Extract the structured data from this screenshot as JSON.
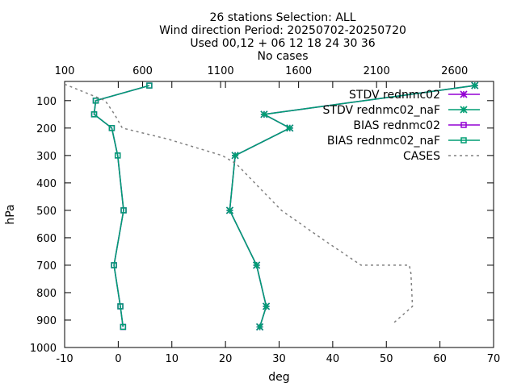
{
  "chart_data": {
    "type": "line",
    "title": [
      "26 stations Selection: ALL",
      "Wind direction  Period: 20250702-20250720",
      "Used 00,12 + 06 12 18 24 30 36",
      "No cases"
    ],
    "xlabel": "deg",
    "ylabel": "hPa",
    "x2label": "",
    "xlim": [
      -10,
      70
    ],
    "ylim": [
      1000,
      30
    ],
    "x2lim": [
      100,
      2850
    ],
    "x_ticks": [
      -10,
      0,
      10,
      20,
      30,
      40,
      50,
      60,
      70
    ],
    "y_ticks": [
      100,
      200,
      300,
      400,
      500,
      600,
      700,
      800,
      900,
      1000
    ],
    "x2_ticks": [
      100,
      600,
      1100,
      1600,
      2100,
      2600
    ],
    "legend_position": "top-right",
    "series": [
      {
        "name": "STDV rednmc02",
        "color": "#9400d3",
        "marker": "star",
        "axis": "x1",
        "points": [
          [
            66.5,
            45
          ],
          [
            27.2,
            150
          ],
          [
            32.0,
            200
          ],
          [
            21.8,
            300
          ],
          [
            20.8,
            500
          ],
          [
            25.8,
            700
          ],
          [
            27.6,
            850
          ],
          [
            26.4,
            925
          ]
        ]
      },
      {
        "name": "STDV rednmc02_naF",
        "color": "#009e73",
        "marker": "star",
        "axis": "x1",
        "points": [
          [
            66.5,
            45
          ],
          [
            27.2,
            150
          ],
          [
            32.0,
            200
          ],
          [
            21.8,
            300
          ],
          [
            20.8,
            500
          ],
          [
            25.8,
            700
          ],
          [
            27.6,
            850
          ],
          [
            26.4,
            925
          ]
        ]
      },
      {
        "name": "BIAS rednmc02",
        "color": "#9400d3",
        "marker": "square",
        "axis": "x1",
        "points": [
          [
            5.8,
            45
          ],
          [
            -4.2,
            100
          ],
          [
            -4.5,
            150
          ],
          [
            -1.2,
            200
          ],
          [
            -0.1,
            300
          ],
          [
            1.0,
            500
          ],
          [
            -0.8,
            700
          ],
          [
            0.4,
            850
          ],
          [
            0.9,
            925
          ]
        ]
      },
      {
        "name": "BIAS rednmc02_naF",
        "color": "#009e73",
        "marker": "square",
        "axis": "x1",
        "points": [
          [
            5.8,
            45
          ],
          [
            -4.2,
            100
          ],
          [
            -4.5,
            150
          ],
          [
            -1.2,
            200
          ],
          [
            -0.1,
            300
          ],
          [
            1.0,
            500
          ],
          [
            -0.8,
            700
          ],
          [
            0.4,
            850
          ],
          [
            0.9,
            925
          ]
        ]
      },
      {
        "name": "CASES",
        "color": "#808080",
        "marker": "none",
        "dash": true,
        "axis": "x2",
        "points": [
          [
            100,
            40
          ],
          [
            360,
            100
          ],
          [
            420,
            150
          ],
          [
            470,
            200
          ],
          [
            760,
            240
          ],
          [
            1110,
            300
          ],
          [
            1200,
            330
          ],
          [
            1370,
            430
          ],
          [
            1490,
            500
          ],
          [
            1740,
            600
          ],
          [
            2000,
            700
          ],
          [
            2310,
            700
          ],
          [
            2320,
            730
          ],
          [
            2330,
            850
          ],
          [
            2200,
            915
          ]
        ]
      }
    ]
  }
}
